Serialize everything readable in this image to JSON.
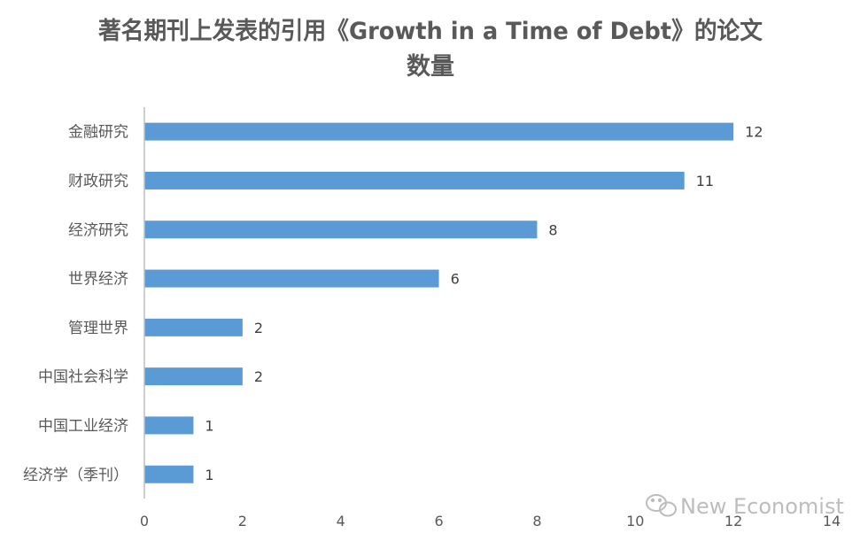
{
  "chart_data": {
    "type": "bar",
    "orientation": "horizontal",
    "title": "著名期刊上发表的引用《Growth in a Time of Debt》的论文数量",
    "title_lines": [
      "著名期刊上发表的引用《Growth in a Time of Debt》的论文",
      "数量"
    ],
    "categories": [
      "金融研究",
      "财政研究",
      "经济研究",
      "世界经济",
      "管理世界",
      "中国社会科学",
      "中国工业经济",
      "经济学（季刊）"
    ],
    "values": [
      12,
      11,
      8,
      6,
      2,
      2,
      1,
      1
    ],
    "xlim": [
      0,
      14
    ],
    "x_ticks": [
      0,
      2,
      4,
      6,
      8,
      10,
      12,
      14
    ],
    "xlabel": "",
    "ylabel": "",
    "grid": false,
    "data_labels": true,
    "bar_color": "#5b9bd5",
    "axis_color": "#bfbfbf"
  },
  "watermark": {
    "text": "New Economist",
    "icon": "wechat-icon"
  }
}
